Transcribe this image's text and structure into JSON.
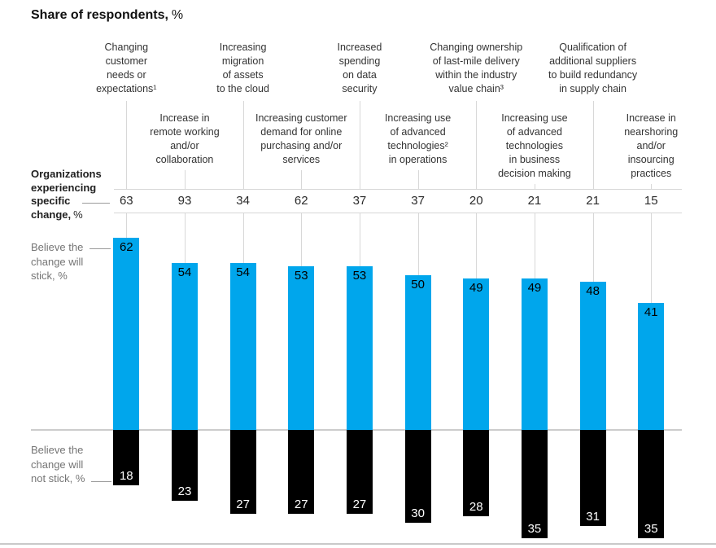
{
  "title": {
    "label": "Share of respondents,",
    "unit": "%"
  },
  "row_labels": {
    "experiencing": {
      "label": "Organizations\nexperiencing\nspecific\nchange,",
      "unit": "%"
    },
    "stick": "Believe the\nchange will\nstick, %",
    "not_stick": "Believe the\nchange will\nnot stick, %"
  },
  "colors": {
    "bar_stick": "#00a6ec",
    "bar_not_stick": "#000000",
    "grid_line": "#d8d8d8",
    "baseline": "#cccccc",
    "gray_text": "#757575"
  },
  "chart_data": {
    "type": "bar",
    "subtype": "diverging-vertical",
    "title": "Share of respondents, %",
    "gridlines": false,
    "legend_position": "row labels at left",
    "baseline_value": 0,
    "categories": [
      "Changing\ncustomer\nneeds or\nexpectations¹",
      "Increase in\nremote working\nand/or\ncollaboration",
      "Increasing\nmigration\nof assets\nto the cloud",
      "Increasing customer\ndemand for online\npurchasing and/or\nservices",
      "Increased\nspending\non data\nsecurity",
      "Increasing use\nof advanced\ntechnologies²\nin operations",
      "Changing ownership\nof last-mile delivery\nwithin the industry\nvalue chain³",
      "Increasing use\nof advanced\ntechnologies\nin business\ndecision making",
      "Qualification of\nadditional suppliers\nto build redundancy\nin supply chain",
      "Increase in\nnearshoring\nand/or\ninsourcing\npractices"
    ],
    "series": [
      {
        "name": "Organizations experiencing specific change, %",
        "values": [
          63,
          93,
          34,
          62,
          37,
          37,
          20,
          21,
          21,
          15
        ]
      },
      {
        "name": "Believe the change will stick, %",
        "values": [
          62,
          54,
          54,
          53,
          53,
          50,
          49,
          49,
          48,
          41
        ]
      },
      {
        "name": "Believe the change will not stick, %",
        "values": [
          18,
          23,
          27,
          27,
          27,
          30,
          28,
          35,
          31,
          35
        ]
      }
    ]
  }
}
